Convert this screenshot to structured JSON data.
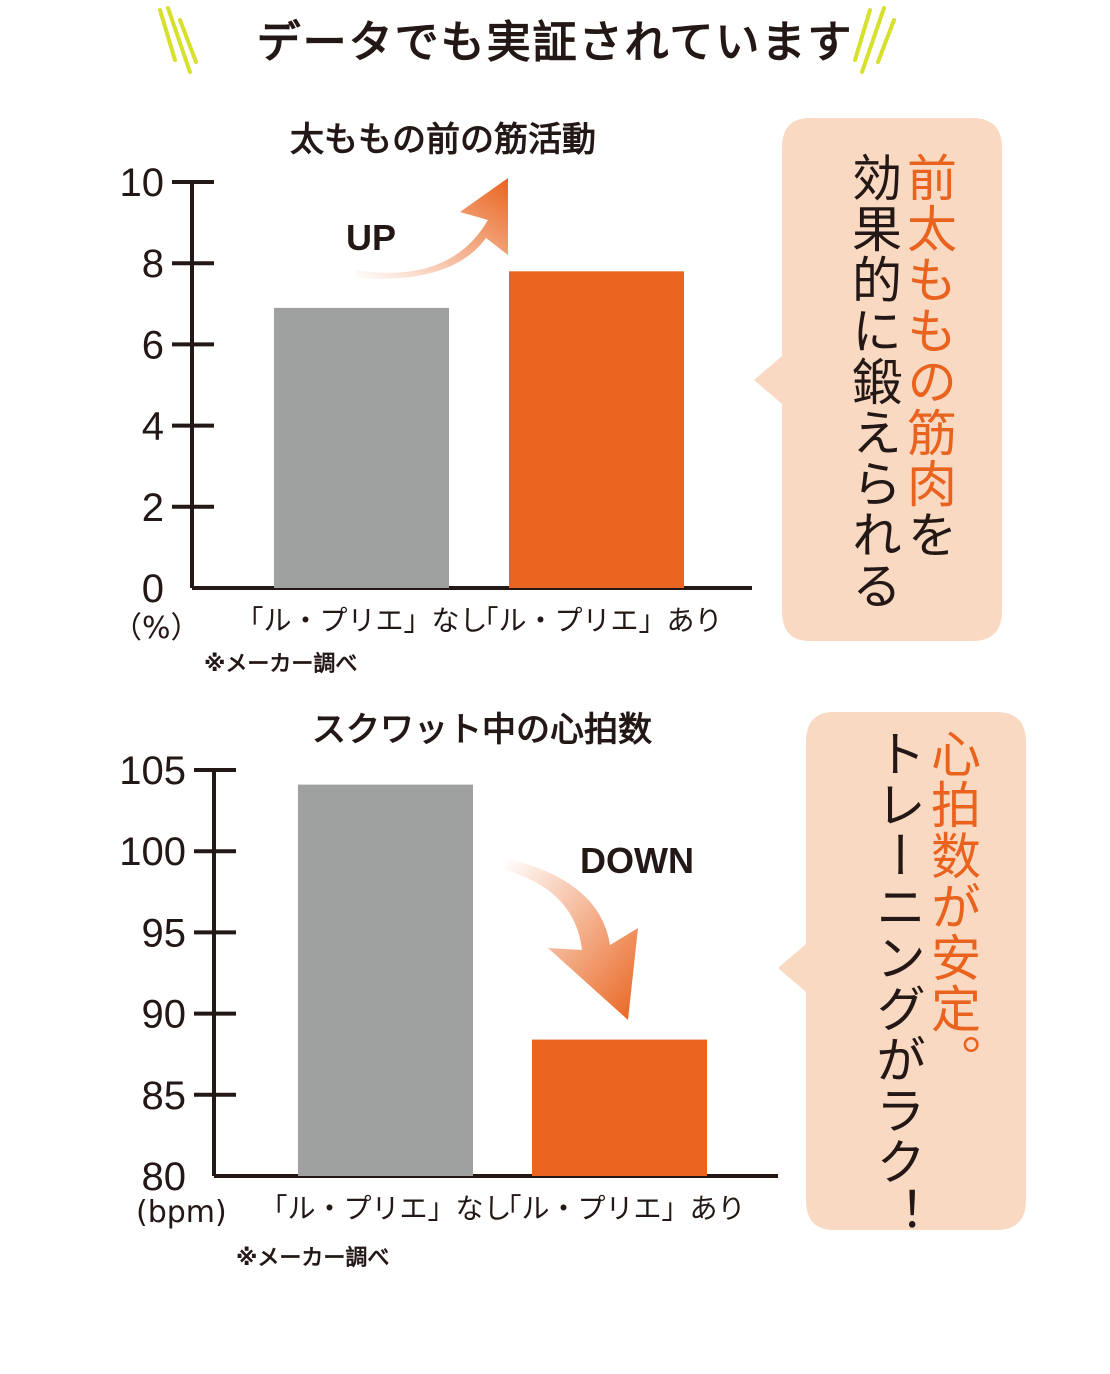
{
  "heading": {
    "text": "データでも実証されています",
    "accent_color": "#d7e02d"
  },
  "colors": {
    "gray_bar": "#9fa0a0",
    "orange_bar": "#e9641f",
    "callout_bg": "#f9d9c2",
    "text": "#231815"
  },
  "chart1": {
    "title": "太ももの前の筋活動",
    "unit": "（%）",
    "source": "※メーカー調べ",
    "arrow_label": "UP",
    "callout": {
      "highlight": "前太ももの筋肉",
      "rest": "を",
      "line2": "効果的に鍛えられる"
    }
  },
  "chart2": {
    "title": "スクワット中の心拍数",
    "unit": "(bpm)",
    "source": "※メーカー調べ",
    "arrow_label": "DOWN",
    "callout": {
      "highlight": "心拍数が安定。",
      "line2": "トレーニングがラク！"
    }
  },
  "chart_data": [
    {
      "type": "bar",
      "title": "太ももの前の筋活動",
      "ylabel": "（%）",
      "ylim": [
        0,
        10
      ],
      "yticks": [
        "0",
        "2",
        "4",
        "6",
        "8",
        "10"
      ],
      "categories": [
        "「ル・プリエ」なし",
        "「ル・プリエ」あり"
      ],
      "values": [
        6.9,
        7.8
      ],
      "bar_colors": [
        "#9fa0a0",
        "#e9641f"
      ]
    },
    {
      "type": "bar",
      "title": "スクワット中の心拍数",
      "ylabel": "(bpm)",
      "ylim": [
        80,
        105
      ],
      "yticks": [
        "80",
        "85",
        "90",
        "95",
        "100",
        "105"
      ],
      "categories": [
        "「ル・プリエ」なし",
        "「ル・プリエ」あり"
      ],
      "values": [
        104.1,
        88.4
      ],
      "bar_colors": [
        "#9fa0a0",
        "#e9641f"
      ]
    }
  ]
}
